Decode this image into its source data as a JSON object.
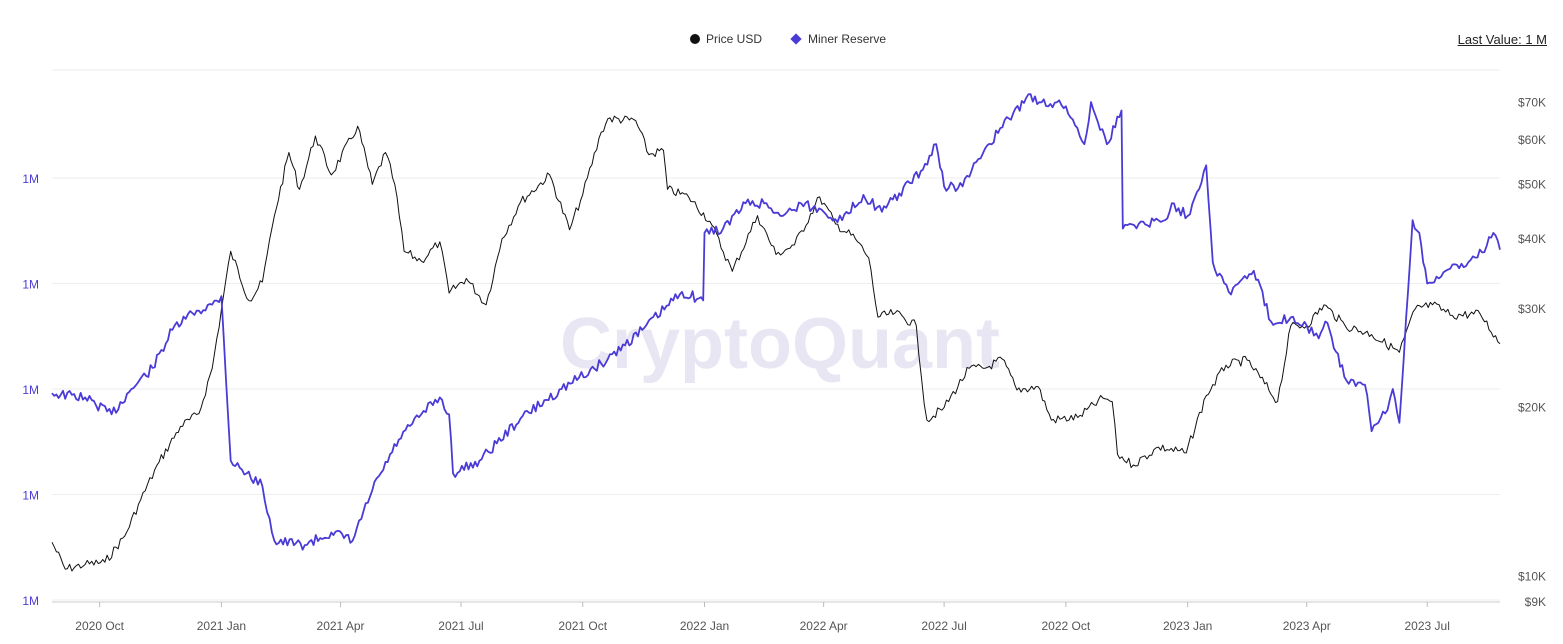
{
  "legend": {
    "price_label": "Price USD",
    "reserve_label": "Miner Reserve"
  },
  "last_value": "Last Value: 1 M",
  "watermark": "CryptoQuant",
  "colors": {
    "price": "#111111",
    "reserve": "#4b3bd6",
    "grid": "#eeeeee",
    "left_axis": "#4b3bd6",
    "right_axis": "#555555"
  },
  "chart_data": {
    "type": "line",
    "x_ticks": [
      "2020 Oct",
      "2021 Jan",
      "2021 Apr",
      "2021 Jul",
      "2021 Oct",
      "2022 Jan",
      "2022 Apr",
      "2022 Jul",
      "2022 Oct",
      "2023 Jan",
      "2023 Apr",
      "2023 Jul"
    ],
    "x_range": [
      "2020-08-26",
      "2023-08-25"
    ],
    "left_axis": {
      "labels": [
        "1M",
        "1M",
        "1M",
        "1M",
        "1M"
      ],
      "levels": [
        1.0,
        0.75,
        0.5,
        0.25,
        0.0
      ]
    },
    "right_axis": {
      "scale": "log",
      "ticks": [
        {
          "label": "$70K",
          "value": 70000
        },
        {
          "label": "$60K",
          "value": 60000
        },
        {
          "label": "$50K",
          "value": 50000
        },
        {
          "label": "$40K",
          "value": 40000
        },
        {
          "label": "$30K",
          "value": 30000
        },
        {
          "label": "$20K",
          "value": 20000
        },
        {
          "label": "$10K",
          "value": 10000
        },
        {
          "label": "$9K",
          "value": 9000
        }
      ],
      "ylim": [
        9000,
        80000
      ]
    },
    "grid": true,
    "legend_position": "top",
    "series": [
      {
        "name": "Price USD",
        "axis": "right",
        "x": [
          "2020-08-26",
          "2020-09-05",
          "2020-09-20",
          "2020-10-05",
          "2020-10-20",
          "2020-11-01",
          "2020-11-15",
          "2020-12-01",
          "2020-12-15",
          "2020-12-25",
          "2021-01-08",
          "2021-01-22",
          "2021-02-01",
          "2021-02-10",
          "2021-02-21",
          "2021-03-01",
          "2021-03-13",
          "2021-03-25",
          "2021-04-14",
          "2021-04-25",
          "2021-05-05",
          "2021-05-12",
          "2021-05-19",
          "2021-06-01",
          "2021-06-15",
          "2021-06-22",
          "2021-07-05",
          "2021-07-20",
          "2021-08-01",
          "2021-08-15",
          "2021-09-06",
          "2021-09-21",
          "2021-10-01",
          "2021-10-15",
          "2021-10-20",
          "2021-11-10",
          "2021-11-20",
          "2021-12-01",
          "2021-12-04",
          "2021-12-20",
          "2022-01-05",
          "2022-01-22",
          "2022-02-10",
          "2022-02-24",
          "2022-03-10",
          "2022-03-29",
          "2022-04-10",
          "2022-04-25",
          "2022-05-05",
          "2022-05-12",
          "2022-05-25",
          "2022-06-10",
          "2022-06-14",
          "2022-06-18",
          "2022-07-01",
          "2022-07-20",
          "2022-08-01",
          "2022-08-14",
          "2022-08-25",
          "2022-09-10",
          "2022-09-20",
          "2022-10-10",
          "2022-10-29",
          "2022-11-05",
          "2022-11-09",
          "2022-11-21",
          "2022-12-10",
          "2022-12-31",
          "2023-01-15",
          "2023-01-30",
          "2023-02-15",
          "2023-03-10",
          "2023-03-20",
          "2023-04-01",
          "2023-04-14",
          "2023-04-30",
          "2023-05-20",
          "2023-06-10",
          "2023-06-22",
          "2023-07-05",
          "2023-07-20",
          "2023-08-10",
          "2023-08-25"
        ],
        "y": [
          11500,
          10300,
          10500,
          10600,
          11800,
          13700,
          16000,
          18500,
          19500,
          23500,
          38000,
          31000,
          33500,
          44000,
          57000,
          49000,
          61000,
          52000,
          63500,
          50000,
          57000,
          50000,
          38000,
          36500,
          39500,
          32000,
          34000,
          30500,
          40000,
          46500,
          52000,
          41500,
          48000,
          62000,
          65500,
          65000,
          56500,
          57500,
          49000,
          47500,
          43000,
          35000,
          44000,
          37500,
          39000,
          47500,
          42500,
          40000,
          37000,
          29000,
          29500,
          28000,
          22500,
          19000,
          20000,
          23500,
          23500,
          24400,
          21500,
          21800,
          19000,
          19200,
          20800,
          20500,
          16500,
          15800,
          17000,
          16600,
          21000,
          23800,
          24300,
          20500,
          28000,
          28000,
          30500,
          28000,
          27000,
          25100,
          30000,
          30500,
          29200,
          29400,
          26000
        ]
      },
      {
        "name": "Miner Reserve",
        "axis": "left",
        "x": [
          "2020-08-26",
          "2020-09-20",
          "2020-10-10",
          "2020-10-25",
          "2020-11-10",
          "2020-11-25",
          "2020-12-10",
          "2020-12-25",
          "2021-01-01",
          "2021-01-08",
          "2021-01-20",
          "2021-02-01",
          "2021-02-10",
          "2021-03-05",
          "2021-03-25",
          "2021-04-10",
          "2021-04-25",
          "2021-05-15",
          "2021-06-01",
          "2021-06-15",
          "2021-06-22",
          "2021-06-25",
          "2021-07-15",
          "2021-08-15",
          "2021-09-15",
          "2021-10-15",
          "2021-11-15",
          "2021-12-15",
          "2021-12-31",
          "2022-01-01",
          "2022-01-15",
          "2022-02-01",
          "2022-02-15",
          "2022-03-01",
          "2022-03-15",
          "2022-04-01",
          "2022-04-15",
          "2022-05-01",
          "2022-05-15",
          "2022-06-15",
          "2022-06-25",
          "2022-07-01",
          "2022-07-15",
          "2022-08-01",
          "2022-09-01",
          "2022-10-01",
          "2022-10-15",
          "2022-10-20",
          "2022-11-01",
          "2022-11-12",
          "2022-11-13",
          "2022-11-20",
          "2022-12-15",
          "2022-12-20",
          "2023-01-01",
          "2023-01-15",
          "2023-01-20",
          "2023-02-01",
          "2023-02-20",
          "2023-03-05",
          "2023-03-20",
          "2023-04-01",
          "2023-04-10",
          "2023-04-15",
          "2023-05-01",
          "2023-05-15",
          "2023-05-20",
          "2023-06-01",
          "2023-06-05",
          "2023-06-10",
          "2023-06-20",
          "2023-06-25",
          "2023-07-01",
          "2023-07-15",
          "2023-08-01",
          "2023-08-15",
          "2023-08-20",
          "2023-08-25"
        ],
        "y": [
          0.49,
          0.48,
          0.44,
          0.5,
          0.55,
          0.64,
          0.68,
          0.7,
          0.72,
          0.33,
          0.3,
          0.27,
          0.14,
          0.13,
          0.16,
          0.14,
          0.26,
          0.38,
          0.44,
          0.48,
          0.44,
          0.3,
          0.33,
          0.43,
          0.5,
          0.56,
          0.64,
          0.73,
          0.71,
          0.87,
          0.88,
          0.94,
          0.94,
          0.91,
          0.94,
          0.92,
          0.9,
          0.96,
          0.92,
          1.02,
          1.08,
          0.98,
          0.98,
          1.07,
          1.19,
          1.17,
          1.08,
          1.18,
          1.08,
          1.16,
          0.88,
          0.89,
          0.9,
          0.94,
          0.91,
          1.03,
          0.8,
          0.73,
          0.78,
          0.66,
          0.67,
          0.65,
          0.62,
          0.66,
          0.52,
          0.51,
          0.4,
          0.45,
          0.5,
          0.42,
          0.9,
          0.87,
          0.75,
          0.78,
          0.8,
          0.84,
          0.87,
          0.83
        ]
      }
    ]
  }
}
